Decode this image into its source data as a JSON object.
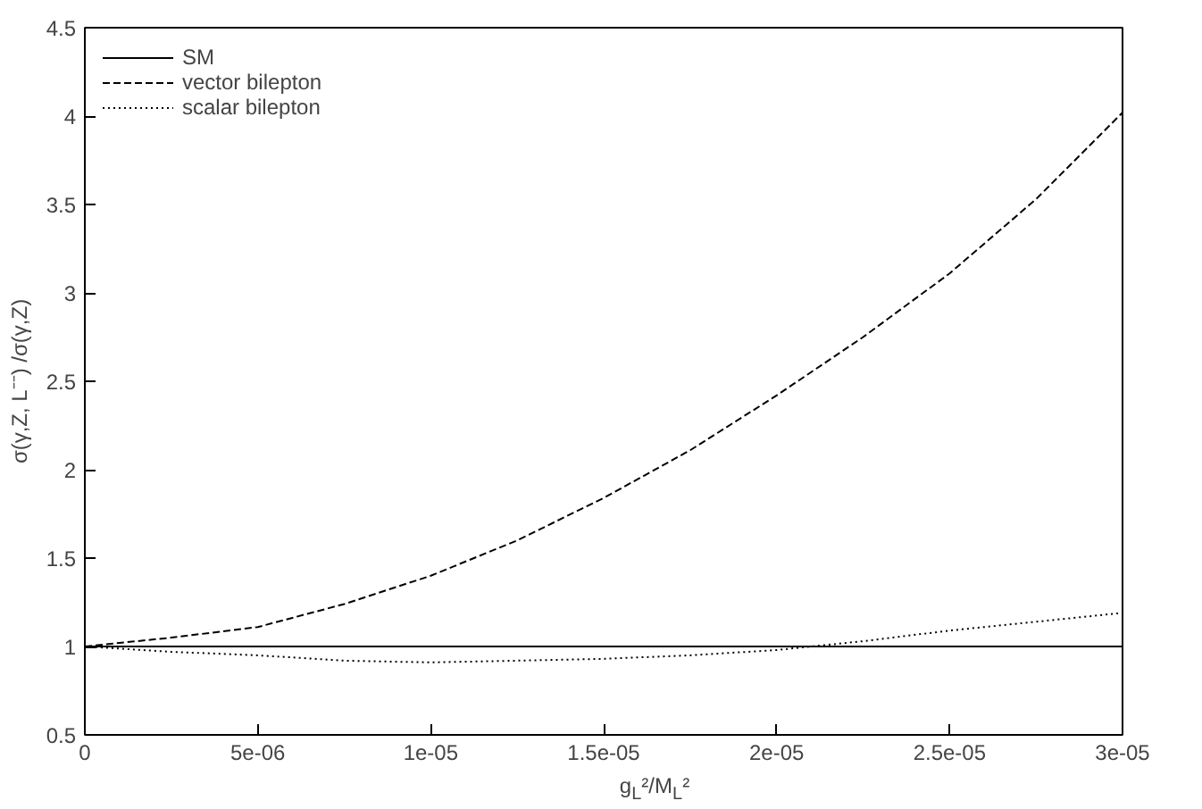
{
  "chart_data": {
    "type": "line",
    "xlabel": "g$_{L}$²/M$_{L}$²",
    "ylabel": "σ(γ,Z, L⁻⁻) /σ(γ,Z)",
    "x": [
      0,
      2.5e-06,
      5e-06,
      7.5e-06,
      1e-05,
      1.25e-05,
      1.5e-05,
      1.75e-05,
      2e-05,
      2.25e-05,
      2.5e-05,
      2.75e-05,
      3e-05
    ],
    "xlim": [
      0,
      3e-05
    ],
    "ylim": [
      0.5,
      4.5
    ],
    "xticks": [
      0,
      {
        "value": 5e-06,
        "label": "5e-06"
      },
      {
        "value": 1e-05,
        "label": "1e-05"
      },
      {
        "value": 1.5e-05,
        "label": "1.5e-05"
      },
      {
        "value": 2e-05,
        "label": "2e-05"
      },
      {
        "value": 2.5e-05,
        "label": "2.5e-05"
      },
      {
        "value": 3e-05,
        "label": "3e-05"
      }
    ],
    "yticks": [
      0.5,
      1,
      1.5,
      2,
      2.5,
      3,
      3.5,
      4,
      4.5
    ],
    "grid": false,
    "legend": "top left",
    "marker": "none",
    "series": [
      {
        "name": "SM",
        "color": "#000000",
        "line_style": "solid",
        "values": [
          1,
          1,
          1,
          1,
          1,
          1,
          1,
          1,
          1,
          1,
          1,
          1,
          1
        ]
      },
      {
        "name": "vector bilepton",
        "color": "#000000",
        "line_style": "dashed",
        "values": [
          1,
          1.05,
          1.11,
          1.24,
          1.4,
          1.6,
          1.84,
          2.11,
          2.42,
          2.75,
          3.11,
          3.53,
          4.02
        ]
      },
      {
        "name": "scalar bilepton",
        "color": "#000000",
        "line_style": "dotted",
        "values": [
          1,
          0.97,
          0.95,
          0.92,
          0.91,
          0.92,
          0.93,
          0.95,
          0.98,
          1.03,
          1.09,
          1.14,
          1.19
        ]
      }
    ]
  }
}
